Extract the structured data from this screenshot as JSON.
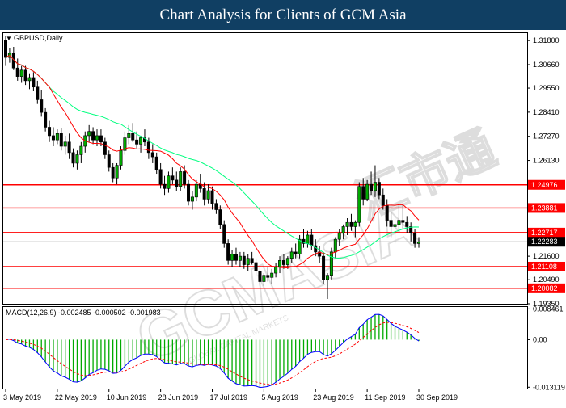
{
  "header": {
    "title": "Chart Analysis for Clients of GCM Asia"
  },
  "watermark": {
    "text": "GCMASIA",
    "cn": "汇市通",
    "tagline": "GLOBAL CAPITAL MARKETS"
  },
  "colors": {
    "bull": "#00aa00",
    "bear": "#000000",
    "level": "#ff0000",
    "ma_fast": "#ff0000",
    "ma_slow": "#00ff7f",
    "macd_line": "#0000ff",
    "macd_signal": "#ff0000",
    "macd_hist": "#00aa00",
    "current_line": "#a0a0a0",
    "banner": "#103f63"
  },
  "chart_data": [
    {
      "type": "candlestick",
      "title": "GBPUSD,Daily",
      "y_ticks": [
        "1.31800",
        "1.30660",
        "1.29550",
        "1.28410",
        "1.27270",
        "1.26130",
        "1.21600",
        "1.20490",
        "1.19350"
      ],
      "ylim": [
        1.1935,
        1.3215
      ],
      "x_tick_labels": [
        "3 May 2019",
        "22 May 2019",
        "10 Jun 2019",
        "28 Jun 2019",
        "17 Jul 2019",
        "5 Aug 2019",
        "23 Aug 2019",
        "11 Sep 2019",
        "30 Sep 2019"
      ],
      "x_tick_index": [
        0,
        13,
        26,
        39,
        52,
        65,
        78,
        91,
        104
      ],
      "levels": [
        "1.24976",
        "1.23881",
        "1.22717",
        "1.21108",
        "1.20082"
      ],
      "current_price": "1.22283",
      "bars": [
        [
          1.318,
          1.32,
          1.306,
          1.31
        ],
        [
          1.31,
          1.3145,
          1.3075,
          1.312
        ],
        [
          1.312,
          1.315,
          1.304,
          1.305
        ],
        [
          1.305,
          1.3095,
          1.299,
          1.301
        ],
        [
          1.301,
          1.306,
          1.298,
          1.304
        ],
        [
          1.304,
          1.306,
          1.297,
          1.299
        ],
        [
          1.299,
          1.3025,
          1.295,
          1.3005
        ],
        [
          1.3005,
          1.303,
          1.294,
          1.296
        ],
        [
          1.296,
          1.299,
          1.288,
          1.29
        ],
        [
          1.29,
          1.2945,
          1.282,
          1.284
        ],
        [
          1.284,
          1.286,
          1.275,
          1.277
        ],
        [
          1.277,
          1.28,
          1.27,
          1.273
        ],
        [
          1.273,
          1.277,
          1.268,
          1.271
        ],
        [
          1.271,
          1.276,
          1.269,
          1.274
        ],
        [
          1.274,
          1.2765,
          1.266,
          1.268
        ],
        [
          1.268,
          1.273,
          1.264,
          1.27
        ],
        [
          1.27,
          1.274,
          1.262,
          1.265
        ],
        [
          1.265,
          1.267,
          1.258,
          1.26
        ],
        [
          1.26,
          1.266,
          1.257,
          1.264
        ],
        [
          1.264,
          1.27,
          1.26,
          1.268
        ],
        [
          1.268,
          1.275,
          1.265,
          1.273
        ],
        [
          1.273,
          1.278,
          1.27,
          1.275
        ],
        [
          1.275,
          1.277,
          1.269,
          1.271
        ],
        [
          1.271,
          1.276,
          1.268,
          1.273
        ],
        [
          1.273,
          1.276,
          1.268,
          1.27
        ],
        [
          1.27,
          1.272,
          1.262,
          1.264
        ],
        [
          1.264,
          1.266,
          1.256,
          1.258
        ],
        [
          1.258,
          1.26,
          1.251,
          1.253
        ],
        [
          1.253,
          1.26,
          1.25,
          1.259
        ],
        [
          1.259,
          1.268,
          1.257,
          1.266
        ],
        [
          1.266,
          1.275,
          1.264,
          1.272
        ],
        [
          1.272,
          1.278,
          1.269,
          1.274
        ],
        [
          1.274,
          1.279,
          1.27,
          1.271
        ],
        [
          1.271,
          1.275,
          1.267,
          1.269
        ],
        [
          1.269,
          1.273,
          1.265,
          1.272
        ],
        [
          1.272,
          1.276,
          1.268,
          1.27
        ],
        [
          1.27,
          1.272,
          1.262,
          1.265
        ],
        [
          1.265,
          1.269,
          1.26,
          1.263
        ],
        [
          1.263,
          1.265,
          1.255,
          1.257
        ],
        [
          1.257,
          1.26,
          1.248,
          1.25
        ],
        [
          1.25,
          1.254,
          1.245,
          1.248
        ],
        [
          1.248,
          1.256,
          1.246,
          1.254
        ],
        [
          1.254,
          1.258,
          1.25,
          1.252
        ],
        [
          1.252,
          1.256,
          1.247,
          1.249
        ],
        [
          1.249,
          1.258,
          1.247,
          1.256
        ],
        [
          1.256,
          1.259,
          1.248,
          1.25
        ],
        [
          1.25,
          1.252,
          1.24,
          1.242
        ],
        [
          1.242,
          1.247,
          1.238,
          1.244
        ],
        [
          1.244,
          1.252,
          1.242,
          1.25
        ],
        [
          1.25,
          1.255,
          1.246,
          1.248
        ],
        [
          1.248,
          1.251,
          1.24,
          1.243
        ],
        [
          1.243,
          1.25,
          1.241,
          1.247
        ],
        [
          1.247,
          1.249,
          1.238,
          1.241
        ],
        [
          1.241,
          1.243,
          1.236,
          1.238
        ],
        [
          1.238,
          1.24,
          1.229,
          1.231
        ],
        [
          1.231,
          1.233,
          1.22,
          1.222
        ],
        [
          1.222,
          1.224,
          1.212,
          1.214
        ],
        [
          1.214,
          1.219,
          1.211,
          1.217
        ],
        [
          1.217,
          1.22,
          1.212,
          1.214
        ],
        [
          1.214,
          1.218,
          1.211,
          1.216
        ],
        [
          1.216,
          1.218,
          1.21,
          1.212
        ],
        [
          1.212,
          1.217,
          1.209,
          1.215
        ],
        [
          1.215,
          1.218,
          1.212,
          1.213
        ],
        [
          1.213,
          1.215,
          1.207,
          1.209
        ],
        [
          1.209,
          1.211,
          1.202,
          1.204
        ],
        [
          1.204,
          1.208,
          1.202,
          1.207
        ],
        [
          1.207,
          1.211,
          1.204,
          1.206
        ],
        [
          1.206,
          1.21,
          1.203,
          1.208
        ],
        [
          1.208,
          1.213,
          1.206,
          1.211
        ],
        [
          1.211,
          1.216,
          1.208,
          1.214
        ],
        [
          1.214,
          1.217,
          1.21,
          1.212
        ],
        [
          1.212,
          1.216,
          1.21,
          1.215
        ],
        [
          1.215,
          1.22,
          1.213,
          1.218
        ],
        [
          1.218,
          1.222,
          1.215,
          1.217
        ],
        [
          1.217,
          1.226,
          1.215,
          1.224
        ],
        [
          1.224,
          1.229,
          1.22,
          1.222
        ],
        [
          1.222,
          1.228,
          1.22,
          1.226
        ],
        [
          1.226,
          1.229,
          1.219,
          1.221
        ],
        [
          1.221,
          1.224,
          1.216,
          1.218
        ],
        [
          1.218,
          1.221,
          1.213,
          1.216
        ],
        [
          1.216,
          1.218,
          1.203,
          1.205
        ],
        [
          1.205,
          1.208,
          1.1958,
          1.207
        ],
        [
          1.207,
          1.22,
          1.205,
          1.218
        ],
        [
          1.218,
          1.225,
          1.215,
          1.224
        ],
        [
          1.224,
          1.229,
          1.221,
          1.227
        ],
        [
          1.227,
          1.231,
          1.224,
          1.23
        ],
        [
          1.23,
          1.234,
          1.226,
          1.232
        ],
        [
          1.232,
          1.236,
          1.228,
          1.23
        ],
        [
          1.23,
          1.233,
          1.225,
          1.232
        ],
        [
          1.232,
          1.251,
          1.23,
          1.249
        ],
        [
          1.249,
          1.253,
          1.24,
          1.243
        ],
        [
          1.243,
          1.252,
          1.242,
          1.25
        ],
        [
          1.25,
          1.256,
          1.245,
          1.247
        ],
        [
          1.247,
          1.259,
          1.244,
          1.251
        ],
        [
          1.251,
          1.253,
          1.243,
          1.245
        ],
        [
          1.245,
          1.248,
          1.238,
          1.24
        ],
        [
          1.24,
          1.243,
          1.23,
          1.233
        ],
        [
          1.233,
          1.237,
          1.225,
          1.23
        ],
        [
          1.23,
          1.235,
          1.222,
          1.231
        ],
        [
          1.231,
          1.24,
          1.228,
          1.233
        ],
        [
          1.233,
          1.241,
          1.229,
          1.232
        ],
        [
          1.232,
          1.235,
          1.227,
          1.23
        ],
        [
          1.23,
          1.232,
          1.223,
          1.227
        ],
        [
          1.227,
          1.229,
          1.22,
          1.222
        ],
        [
          1.222,
          1.225,
          1.22,
          1.2228
        ]
      ]
    },
    {
      "type": "bar",
      "title": "MACD(12,26,9) -0.002485 -0.000502 -0.001983",
      "y_ticks": [
        "0.008461",
        "0.00",
        "-0.013119"
      ],
      "ylim": [
        -0.0135,
        0.009
      ]
    }
  ]
}
